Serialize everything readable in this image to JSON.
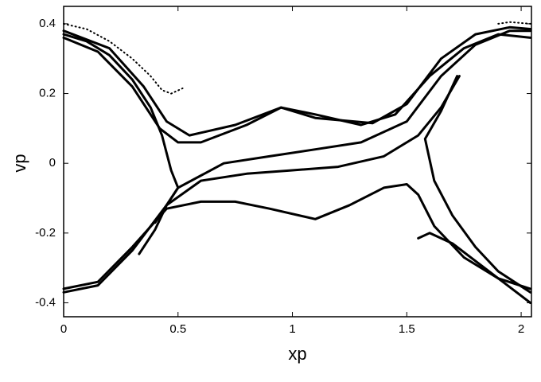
{
  "chart_data": {
    "type": "line",
    "x_label": "xp",
    "y_label": "vp",
    "xlim": [
      0,
      2.045
    ],
    "ylim": [
      -0.44,
      0.45
    ],
    "xticks": [
      0,
      0.5,
      1,
      1.5,
      2
    ],
    "yticks": [
      -0.4,
      -0.2,
      0,
      0.2,
      0.4
    ],
    "series": [
      {
        "color": "#000000",
        "line_style": "dotted",
        "x": [
          0,
          0.1,
          0.2,
          0.3,
          0.38,
          0.43,
          0.47,
          0.52
        ],
        "values": [
          0.4,
          0.385,
          0.35,
          0.3,
          0.25,
          0.21,
          0.2,
          0.215
        ]
      },
      {
        "color": "#000000",
        "line_style": "solid",
        "x": [
          0,
          0.1,
          0.2,
          0.3,
          0.38,
          0.43,
          0.47,
          0.5,
          0.45,
          0.4,
          0.33
        ],
        "values": [
          0.37,
          0.35,
          0.31,
          0.24,
          0.16,
          0.08,
          -0.02,
          -0.07,
          -0.12,
          -0.19,
          -0.26
        ]
      },
      {
        "color": "#000000",
        "line_style": "solid",
        "x": [
          0,
          0.15,
          0.3,
          0.42,
          0.5,
          0.6,
          0.8,
          0.95,
          1.1,
          1.3,
          1.45,
          1.6,
          1.75,
          1.9,
          2.04
        ],
        "values": [
          0.36,
          0.32,
          0.22,
          0.1,
          0.06,
          0.06,
          0.11,
          0.16,
          0.14,
          0.11,
          0.14,
          0.25,
          0.33,
          0.37,
          0.36
        ]
      },
      {
        "color": "#000000",
        "line_style": "solid",
        "x": [
          0,
          0.2,
          0.35,
          0.45,
          0.55,
          0.75,
          0.95,
          1.1,
          1.35,
          1.5,
          1.65,
          1.8,
          1.95,
          2.04
        ],
        "values": [
          0.38,
          0.33,
          0.22,
          0.12,
          0.08,
          0.11,
          0.16,
          0.13,
          0.115,
          0.17,
          0.3,
          0.37,
          0.39,
          0.385
        ]
      },
      {
        "color": "#000000",
        "line_style": "solid",
        "x": [
          0.4,
          0.5,
          0.7,
          0.9,
          1.1,
          1.3,
          1.5,
          1.65,
          1.8,
          1.95,
          2.04
        ],
        "values": [
          -0.17,
          -0.07,
          0.0,
          0.02,
          0.04,
          0.06,
          0.12,
          0.25,
          0.34,
          0.38,
          0.38
        ]
      },
      {
        "color": "#000000",
        "line_style": "solid",
        "x": [
          0,
          0.15,
          0.3,
          0.45,
          0.6,
          0.8,
          1.0,
          1.2,
          1.4,
          1.55,
          1.65,
          1.73
        ],
        "values": [
          -0.37,
          -0.35,
          -0.25,
          -0.12,
          -0.05,
          -0.03,
          -0.02,
          -0.01,
          0.02,
          0.08,
          0.16,
          0.25
        ]
      },
      {
        "color": "#000000",
        "line_style": "solid",
        "x": [
          0,
          0.15,
          0.3,
          0.45,
          0.6,
          0.75,
          0.9,
          1.1,
          1.25,
          1.4,
          1.5,
          1.55,
          1.62,
          1.75,
          1.9,
          2.04
        ],
        "values": [
          -0.36,
          -0.34,
          -0.24,
          -0.13,
          -0.11,
          -0.11,
          -0.13,
          -0.16,
          -0.12,
          -0.07,
          -0.06,
          -0.09,
          -0.18,
          -0.27,
          -0.33,
          -0.36
        ]
      },
      {
        "color": "#000000",
        "line_style": "solid",
        "x": [
          1.72,
          1.65,
          1.58,
          1.62,
          1.7,
          1.8,
          1.9,
          2.04
        ],
        "values": [
          0.25,
          0.15,
          0.07,
          -0.05,
          -0.15,
          -0.24,
          -0.31,
          -0.37
        ]
      },
      {
        "color": "#000000",
        "line_style": "solid",
        "x": [
          1.55,
          1.6,
          1.7,
          1.8,
          1.9,
          2.0,
          2.04
        ],
        "values": [
          -0.215,
          -0.2,
          -0.23,
          -0.28,
          -0.33,
          -0.38,
          -0.4
        ]
      },
      {
        "color": "#000000",
        "line_style": "dotted",
        "x": [
          1.9,
          1.95,
          2.04
        ],
        "values": [
          0.4,
          0.405,
          0.4
        ]
      }
    ]
  }
}
